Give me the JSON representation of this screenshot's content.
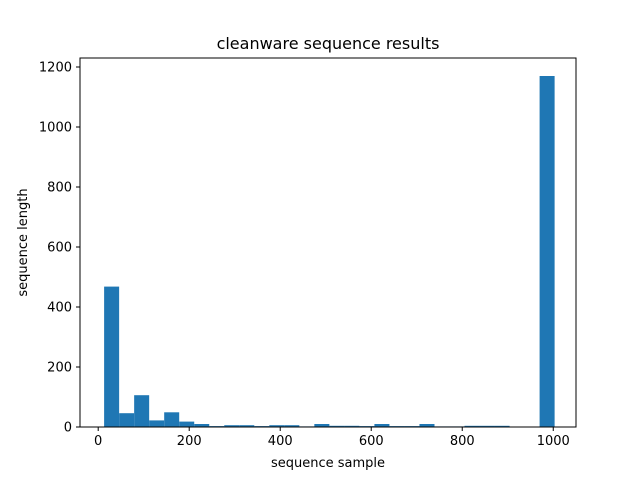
{
  "chart_data": {
    "type": "bar",
    "title": "cleanware sequence results",
    "xlabel": "sequence sample",
    "ylabel": "sequence length",
    "xlim": [
      -40,
      1050
    ],
    "ylim": [
      0,
      1230
    ],
    "x_ticks": [
      0,
      200,
      400,
      600,
      800,
      1000
    ],
    "y_ticks": [
      0,
      200,
      400,
      600,
      800,
      1000,
      1200
    ],
    "bar_color": "#1f77b4",
    "grid": false,
    "bins": [
      {
        "x0": 13,
        "x1": 46,
        "value": 468
      },
      {
        "x0": 46,
        "x1": 79,
        "value": 46
      },
      {
        "x0": 79,
        "x1": 112,
        "value": 106
      },
      {
        "x0": 112,
        "x1": 145,
        "value": 22
      },
      {
        "x0": 145,
        "x1": 178,
        "value": 49
      },
      {
        "x0": 178,
        "x1": 211,
        "value": 18
      },
      {
        "x0": 211,
        "x1": 244,
        "value": 10
      },
      {
        "x0": 244,
        "x1": 277,
        "value": 3
      },
      {
        "x0": 277,
        "x1": 310,
        "value": 6
      },
      {
        "x0": 310,
        "x1": 343,
        "value": 6
      },
      {
        "x0": 343,
        "x1": 376,
        "value": 3
      },
      {
        "x0": 376,
        "x1": 409,
        "value": 6
      },
      {
        "x0": 409,
        "x1": 442,
        "value": 6
      },
      {
        "x0": 442,
        "x1": 475,
        "value": 2
      },
      {
        "x0": 475,
        "x1": 508,
        "value": 10
      },
      {
        "x0": 508,
        "x1": 541,
        "value": 4
      },
      {
        "x0": 541,
        "x1": 574,
        "value": 4
      },
      {
        "x0": 574,
        "x1": 607,
        "value": 3
      },
      {
        "x0": 607,
        "x1": 640,
        "value": 10
      },
      {
        "x0": 640,
        "x1": 673,
        "value": 3
      },
      {
        "x0": 673,
        "x1": 706,
        "value": 3
      },
      {
        "x0": 706,
        "x1": 739,
        "value": 10
      },
      {
        "x0": 739,
        "x1": 772,
        "value": 2
      },
      {
        "x0": 772,
        "x1": 805,
        "value": 2
      },
      {
        "x0": 805,
        "x1": 838,
        "value": 4
      },
      {
        "x0": 838,
        "x1": 871,
        "value": 4
      },
      {
        "x0": 871,
        "x1": 904,
        "value": 4
      },
      {
        "x0": 904,
        "x1": 937,
        "value": 0
      },
      {
        "x0": 937,
        "x1": 970,
        "value": 0
      },
      {
        "x0": 970,
        "x1": 1003,
        "value": 1170
      }
    ]
  }
}
